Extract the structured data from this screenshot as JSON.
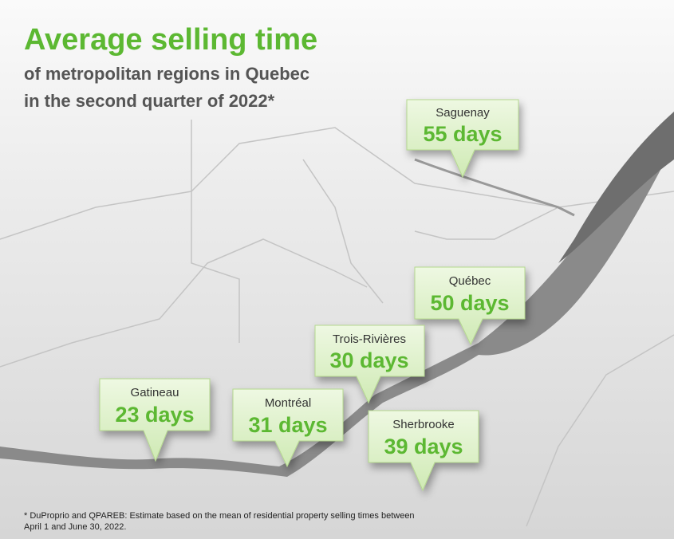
{
  "header": {
    "title": "Average selling time",
    "subtitle_lines": [
      "of metropolitan regions in Quebec",
      "in the second quarter of 2022*"
    ]
  },
  "regions": [
    {
      "name": "Saguenay",
      "label": "55 days"
    },
    {
      "name": "Québec",
      "label": "50 days"
    },
    {
      "name": "Trois-Rivières",
      "label": "30 days"
    },
    {
      "name": "Gatineau",
      "label": "23 days"
    },
    {
      "name": "Montréal",
      "label": "31 days"
    },
    {
      "name": "Sherbrooke",
      "label": "39 days"
    }
  ],
  "footnote": {
    "lines": [
      "* DuProprio and QPAREB: Estimate based on the mean of residential property selling times between",
      "April 1  and June 30, 2022."
    ]
  }
}
